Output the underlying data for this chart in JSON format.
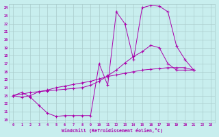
{
  "xlabel": "Windchill (Refroidissement éolien,°C)",
  "bg_color": "#c8eeee",
  "line_color": "#aa00aa",
  "grid_color": "#aacccc",
  "xlim_min": -0.5,
  "xlim_max": 23.5,
  "ylim_min": 9.6,
  "ylim_max": 24.5,
  "xticks": [
    0,
    1,
    2,
    3,
    4,
    5,
    6,
    7,
    8,
    9,
    10,
    11,
    12,
    13,
    14,
    15,
    16,
    17,
    18,
    19,
    20,
    21,
    22,
    23
  ],
  "yticks": [
    10,
    11,
    12,
    13,
    14,
    15,
    16,
    17,
    18,
    19,
    20,
    21,
    22,
    23,
    24
  ],
  "line1_x": [
    0,
    1,
    2,
    3,
    4,
    5,
    6,
    7,
    8,
    9,
    10,
    11,
    12,
    13,
    14,
    15,
    16,
    17,
    18,
    19,
    20,
    21
  ],
  "line1_y": [
    13.0,
    13.4,
    12.8,
    11.8,
    10.8,
    10.4,
    10.5,
    10.5,
    10.5,
    10.5,
    17.0,
    14.3,
    23.5,
    22.0,
    17.5,
    24.0,
    24.3,
    24.2,
    23.5,
    19.2,
    17.5,
    16.2
  ],
  "line2_x": [
    0,
    1,
    2,
    3,
    4,
    5,
    6,
    7,
    8,
    9,
    10,
    11,
    12,
    13,
    14,
    15,
    16,
    17,
    18,
    19,
    20,
    21
  ],
  "line2_y": [
    13.0,
    13.2,
    13.4,
    13.5,
    13.6,
    13.7,
    13.8,
    13.9,
    14.0,
    14.3,
    14.8,
    15.5,
    16.2,
    17.1,
    17.9,
    18.5,
    19.3,
    19.0,
    17.0,
    16.2,
    16.2,
    16.2
  ],
  "line3_x": [
    0,
    1,
    2,
    3,
    4,
    5,
    6,
    7,
    8,
    9,
    10,
    11,
    12,
    13,
    14,
    15,
    16,
    17,
    18,
    19,
    20,
    21
  ],
  "line3_y": [
    13.0,
    12.8,
    13.0,
    13.5,
    13.7,
    14.0,
    14.2,
    14.4,
    14.6,
    14.8,
    15.1,
    15.4,
    15.6,
    15.8,
    16.0,
    16.2,
    16.3,
    16.4,
    16.5,
    16.5,
    16.5,
    16.2
  ]
}
